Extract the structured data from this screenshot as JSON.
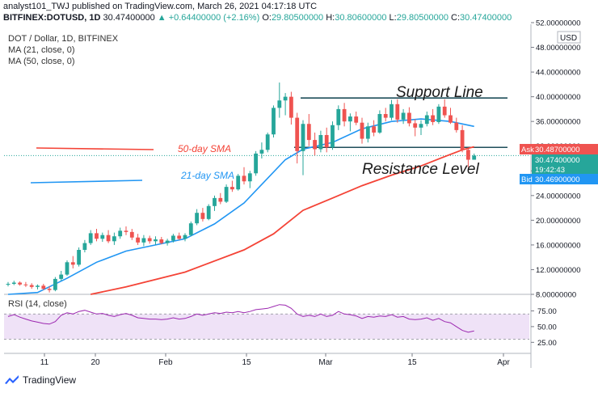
{
  "header": {
    "published_line": "analyst101_TWJ published on TradingView.com, March 26, 2021 04:17:18 UTC",
    "symbol": "BITFINEX:DOTUSD, 1D",
    "last": "30.47400000",
    "change": "▲ +0.64400000 (+2.16%)",
    "o_label": "O:",
    "o_value": "29.80500000",
    "h_label": "H:",
    "h_value": "30.80600000",
    "l_label": "L:",
    "l_value": "29.80500000",
    "c_label": "C:",
    "c_value": "30.47400000"
  },
  "legend": {
    "title": "DOT / Dollar, 1D, BITFINEX",
    "ma21": "MA (21, close, 0)",
    "ma50": "MA (50, close, 0)",
    "rsi": "RSI (14, close)"
  },
  "price_axis": {
    "currency": "USD",
    "ticks": [
      "52.00000000",
      "48.00000000",
      "44.00000000",
      "40.00000000",
      "36.00000000",
      "32.00000000",
      "28.00000000",
      "24.00000000",
      "20.00000000",
      "16.00000000",
      "12.00000000",
      "8.00000000"
    ]
  },
  "price_badges": {
    "ask_label": "Ask",
    "ask_value": "30.48700000",
    "last_value": "30.47400000",
    "countdown": "19:42:43",
    "bid_label": "Bid",
    "bid_value": "30.46900000"
  },
  "rsi_axis": {
    "ticks": [
      "75.00",
      "50.00",
      "25.00"
    ]
  },
  "time_axis": {
    "ticks": [
      "11",
      "20",
      "Feb",
      "15",
      "Mar",
      "15",
      "Apr"
    ]
  },
  "annotations": {
    "support": "Support Line",
    "resistance": "Resistance Level",
    "sma50": "50-day SMA",
    "sma21": "21-day SMA"
  },
  "footer": {
    "brand": "TradingView"
  },
  "colors": {
    "up": "#26a69a",
    "down": "#ef5350",
    "ma21": "#2196f3",
    "ma50": "#f44336",
    "rsi": "#9c27b0",
    "rsi_band": "#efe2f7",
    "badge_ask": "#ef5350",
    "badge_bid": "#2196f3",
    "badge_last": "#26a69a"
  },
  "chart_data": {
    "type": "candlestick",
    "title": "DOT / Dollar, 1D, BITFINEX",
    "ylim": [
      8,
      52
    ],
    "series_ohlc": [
      [
        9.6,
        10.0,
        9.3,
        9.7
      ],
      [
        9.7,
        10.2,
        9.5,
        9.9
      ],
      [
        9.9,
        10.1,
        9.4,
        9.6
      ],
      [
        9.6,
        10.0,
        9.2,
        9.5
      ],
      [
        9.5,
        9.8,
        8.9,
        9.2
      ],
      [
        9.2,
        9.6,
        8.8,
        9.4
      ],
      [
        9.4,
        9.7,
        8.7,
        8.9
      ],
      [
        8.9,
        9.3,
        8.3,
        8.7
      ],
      [
        8.7,
        10.8,
        8.5,
        10.5
      ],
      [
        10.5,
        11.8,
        10.2,
        11.2
      ],
      [
        11.2,
        13.5,
        11.0,
        13.2
      ],
      [
        13.2,
        14.2,
        12.2,
        12.8
      ],
      [
        12.8,
        15.6,
        12.5,
        15.2
      ],
      [
        15.2,
        16.8,
        14.8,
        16.3
      ],
      [
        16.3,
        18.4,
        16.0,
        17.9
      ],
      [
        17.9,
        18.6,
        16.6,
        17.0
      ],
      [
        17.0,
        18.0,
        16.5,
        17.6
      ],
      [
        17.6,
        18.4,
        16.3,
        16.6
      ],
      [
        16.6,
        18.0,
        16.0,
        17.4
      ],
      [
        17.4,
        18.8,
        17.0,
        18.3
      ],
      [
        18.3,
        19.0,
        17.6,
        18.1
      ],
      [
        18.1,
        18.6,
        16.8,
        17.2
      ],
      [
        17.2,
        17.8,
        16.0,
        16.4
      ],
      [
        16.4,
        17.6,
        15.8,
        17.1
      ],
      [
        17.1,
        17.5,
        16.2,
        16.6
      ],
      [
        16.6,
        17.4,
        16.0,
        16.9
      ],
      [
        16.9,
        17.3,
        16.1,
        16.3
      ],
      [
        16.3,
        17.0,
        15.9,
        16.7
      ],
      [
        16.7,
        17.8,
        16.4,
        17.5
      ],
      [
        17.5,
        18.0,
        16.8,
        17.0
      ],
      [
        17.0,
        17.9,
        16.6,
        17.6
      ],
      [
        17.6,
        19.8,
        17.4,
        19.5
      ],
      [
        19.5,
        21.8,
        19.2,
        21.2
      ],
      [
        21.2,
        22.0,
        19.8,
        20.2
      ],
      [
        20.2,
        22.6,
        20.0,
        22.3
      ],
      [
        22.3,
        24.0,
        21.5,
        23.6
      ],
      [
        23.6,
        24.4,
        22.6,
        23.0
      ],
      [
        23.0,
        25.8,
        22.8,
        25.4
      ],
      [
        25.4,
        26.4,
        24.6,
        25.0
      ],
      [
        25.0,
        27.5,
        24.8,
        27.2
      ],
      [
        27.2,
        28.6,
        25.8,
        26.3
      ],
      [
        26.3,
        28.0,
        25.2,
        27.6
      ],
      [
        27.6,
        31.2,
        27.2,
        30.8
      ],
      [
        30.8,
        32.6,
        30.0,
        31.4
      ],
      [
        31.4,
        34.2,
        31.0,
        33.9
      ],
      [
        33.9,
        38.6,
        33.4,
        38.2
      ],
      [
        38.2,
        42.3,
        36.6,
        39.4
      ],
      [
        39.4,
        40.6,
        37.0,
        40.0
      ],
      [
        40.0,
        40.8,
        35.5,
        36.6
      ],
      [
        36.6,
        37.4,
        29.2,
        31.2
      ],
      [
        31.2,
        36.2,
        27.3,
        35.6
      ],
      [
        35.6,
        37.2,
        32.0,
        33.0
      ],
      [
        33.0,
        34.2,
        30.5,
        31.5
      ],
      [
        31.5,
        34.5,
        31.0,
        33.8
      ],
      [
        33.8,
        35.0,
        31.0,
        31.8
      ],
      [
        31.8,
        36.0,
        31.4,
        35.4
      ],
      [
        35.4,
        38.6,
        34.6,
        38.0
      ],
      [
        38.0,
        39.0,
        35.2,
        36.0
      ],
      [
        36.0,
        37.3,
        34.4,
        36.8
      ],
      [
        36.8,
        37.6,
        35.4,
        35.8
      ],
      [
        35.8,
        36.6,
        32.4,
        33.2
      ],
      [
        33.2,
        35.8,
        32.6,
        35.2
      ],
      [
        35.2,
        36.2,
        33.6,
        34.2
      ],
      [
        34.2,
        37.8,
        34.0,
        37.2
      ],
      [
        37.2,
        38.2,
        36.0,
        36.6
      ],
      [
        36.6,
        39.5,
        36.2,
        38.8
      ],
      [
        38.8,
        39.6,
        35.8,
        36.3
      ],
      [
        36.3,
        38.0,
        35.6,
        37.4
      ],
      [
        37.4,
        38.3,
        35.2,
        35.7
      ],
      [
        35.7,
        36.4,
        33.6,
        35.0
      ],
      [
        35.0,
        36.2,
        33.8,
        35.6
      ],
      [
        35.6,
        37.6,
        35.2,
        37.0
      ],
      [
        37.0,
        38.0,
        35.4,
        35.9
      ],
      [
        35.9,
        38.8,
        35.6,
        38.4
      ],
      [
        38.4,
        39.6,
        36.6,
        37.0
      ],
      [
        37.0,
        38.2,
        35.6,
        35.8
      ],
      [
        35.8,
        36.6,
        34.2,
        34.6
      ],
      [
        34.6,
        35.4,
        31.0,
        31.4
      ],
      [
        31.4,
        31.6,
        28.6,
        29.8
      ],
      [
        29.8,
        30.8,
        29.8,
        30.47
      ]
    ],
    "ma21": [
      [
        0,
        8.0
      ],
      [
        5,
        8.3
      ],
      [
        10,
        10.6
      ],
      [
        15,
        13.2
      ],
      [
        20,
        15.0
      ],
      [
        25,
        16.0
      ],
      [
        30,
        17.0
      ],
      [
        35,
        19.4
      ],
      [
        40,
        22.8
      ],
      [
        44,
        26.8
      ],
      [
        47,
        29.8
      ],
      [
        50,
        31.5
      ],
      [
        55,
        32.6
      ],
      [
        60,
        34.8
      ],
      [
        65,
        36.0
      ],
      [
        70,
        36.4
      ],
      [
        75,
        36.0
      ],
      [
        79,
        35.2
      ]
    ],
    "ma50": [
      [
        14,
        8.0
      ],
      [
        20,
        9.2
      ],
      [
        30,
        11.6
      ],
      [
        40,
        15.2
      ],
      [
        45,
        17.8
      ],
      [
        50,
        21.6
      ],
      [
        55,
        23.6
      ],
      [
        60,
        25.6
      ],
      [
        65,
        27.3
      ],
      [
        70,
        28.8
      ],
      [
        74,
        30.3
      ],
      [
        77,
        31.4
      ],
      [
        79,
        31.9
      ]
    ],
    "rsi": [
      66,
      69,
      65,
      62,
      59,
      57,
      55,
      54,
      58,
      68,
      72,
      70,
      74,
      76,
      73,
      70,
      71,
      68,
      66,
      69,
      71,
      68,
      64,
      63,
      62,
      62,
      61,
      62,
      64,
      62,
      63,
      66,
      70,
      68,
      70,
      72,
      71,
      73,
      72,
      74,
      72,
      74,
      77,
      78,
      79,
      82,
      85,
      84,
      79,
      70,
      66,
      68,
      66,
      70,
      66,
      68,
      74,
      70,
      69,
      67,
      63,
      66,
      65,
      67,
      66,
      69,
      65,
      66,
      62,
      61,
      62,
      64,
      60,
      63,
      58,
      56,
      50,
      44,
      41,
      43
    ],
    "support_level": 39.8,
    "resistance_level": 31.8,
    "rsi_levels": [
      75,
      50,
      25
    ],
    "rsi_band": [
      30,
      70
    ],
    "grid": false
  }
}
